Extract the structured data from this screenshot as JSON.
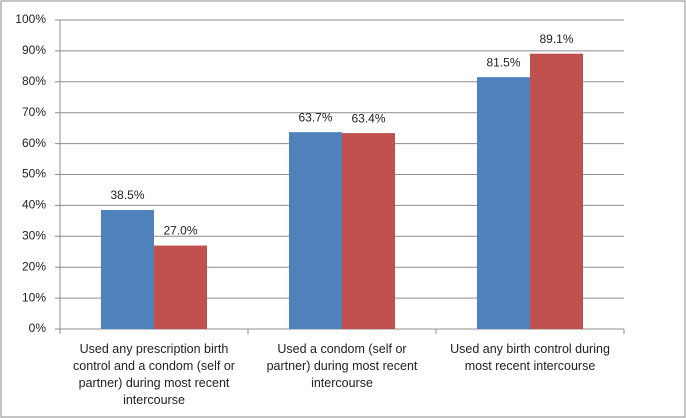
{
  "chart_data": {
    "type": "bar",
    "categories": [
      "Used any prescription birth control and a condom (self or partner) during most recent intercourse",
      "Used a condom (self or partner) during most recent intercourse",
      "Used any birth control during most recent intercourse"
    ],
    "series": [
      {
        "color": "#4f81bd",
        "values": [
          38.5,
          63.7,
          81.5
        ],
        "value_labels": [
          "38.5%",
          "63.7%",
          "81.5%"
        ]
      },
      {
        "color": "#c0504d",
        "values": [
          27.0,
          63.4,
          89.1
        ],
        "value_labels": [
          "27.0%",
          "63.4%",
          "89.1%"
        ]
      }
    ],
    "ylim": [
      0,
      100
    ],
    "yticks": [
      {
        "value": 0,
        "label": "0%"
      },
      {
        "value": 10,
        "label": "10%"
      },
      {
        "value": 20,
        "label": "20%"
      },
      {
        "value": 30,
        "label": "30%"
      },
      {
        "value": 40,
        "label": "40%"
      },
      {
        "value": 50,
        "label": "50%"
      },
      {
        "value": 60,
        "label": "60%"
      },
      {
        "value": 70,
        "label": "70%"
      },
      {
        "value": 80,
        "label": "80%"
      },
      {
        "value": 90,
        "label": "90%"
      },
      {
        "value": 100,
        "label": "100%"
      }
    ],
    "grid": true
  }
}
